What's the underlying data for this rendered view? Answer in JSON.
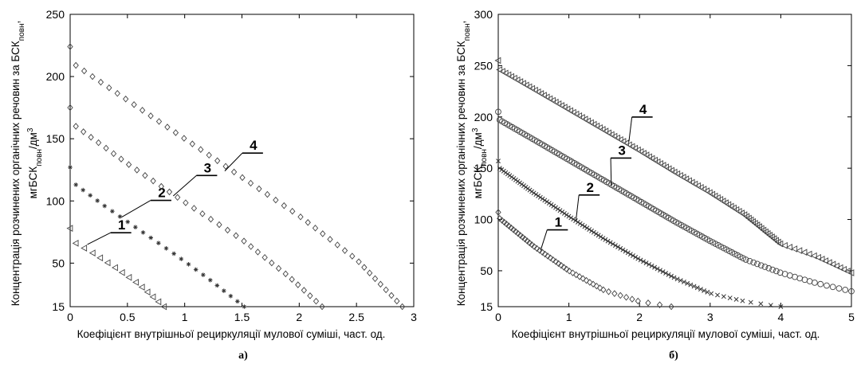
{
  "chart_data": [
    {
      "type": "scatter",
      "panel_label": "а)",
      "xlabel": "Коефіцієнт внутрішньої рециркуляції мулової суміші, част. од.",
      "ylabel_line1": "Концентрація розчинених органічних речовин за БСК",
      "ylabel_line1_sub": "повн",
      "ylabel_line1_tail": ",",
      "ylabel_line2": "мгБСК",
      "ylabel_line2_sub": "повн",
      "ylabel_line2_tail": "/дм",
      "ylabel_line2_sup": "3",
      "xlim": [
        0,
        3
      ],
      "ylim": [
        15,
        250
      ],
      "xticks": [
        0,
        0.5,
        1,
        1.5,
        2,
        2.5,
        3
      ],
      "xtick_labels": [
        "0",
        "0.5",
        "1",
        "1.5",
        "2",
        "2.5",
        "3"
      ],
      "yticks": [
        15,
        50,
        100,
        150,
        200,
        250
      ],
      "ytick_labels": [
        "15",
        "50",
        "100",
        "150",
        "200",
        "250"
      ],
      "series": [
        {
          "name": "1",
          "marker": "triangle-left",
          "start": [
            0,
            78
          ],
          "points": [
            [
              0.05,
              66
            ],
            [
              0.2,
              58
            ],
            [
              0.4,
              46
            ],
            [
              0.6,
              33
            ],
            [
              0.82,
              15
            ]
          ],
          "n": 14,
          "label_anchor": [
            0.15,
            65
          ],
          "label_pos": [
            0.45,
            77
          ]
        },
        {
          "name": "2",
          "marker": "star",
          "start": [
            0,
            127
          ],
          "points": [
            [
              0.05,
              113
            ],
            [
              0.3,
              96
            ],
            [
              0.6,
              77
            ],
            [
              0.9,
              58
            ],
            [
              1.2,
              38
            ],
            [
              1.52,
              15
            ]
          ],
          "n": 24,
          "label_anchor": [
            0.45,
            87
          ],
          "label_pos": [
            0.8,
            103
          ]
        },
        {
          "name": "3",
          "marker": "diamond",
          "start": [
            0,
            175
          ],
          "points": [
            [
              0.05,
              160
            ],
            [
              0.5,
              130
            ],
            [
              1.0,
              99
            ],
            [
              1.5,
              69
            ],
            [
              1.9,
              40
            ],
            [
              2.2,
              15
            ]
          ],
          "n": 34,
          "label_anchor": [
            0.9,
            104
          ],
          "label_pos": [
            1.2,
            123
          ]
        },
        {
          "name": "4",
          "marker": "diamond",
          "start": [
            0,
            224
          ],
          "points": [
            [
              0.05,
              209
            ],
            [
              0.5,
              181
            ],
            [
              1.0,
              150
            ],
            [
              1.5,
              119
            ],
            [
              2.0,
              88
            ],
            [
              2.5,
              53
            ],
            [
              2.9,
              15
            ]
          ],
          "n": 44,
          "label_anchor": [
            1.35,
            124
          ],
          "label_pos": [
            1.6,
            141
          ]
        }
      ]
    },
    {
      "type": "scatter",
      "panel_label": "б)",
      "xlabel": "Коефіцієнт внутрішньої рециркуляції мулової суміші, част. од.",
      "ylabel_line1": "Концентрація розчинених органічних речовин за БСК",
      "ylabel_line1_sub": "повн",
      "ylabel_line1_tail": ",",
      "ylabel_line2": "мгБСК",
      "ylabel_line2_sub": "повн",
      "ylabel_line2_tail": "/дм",
      "ylabel_line2_sup": "3",
      "xlim": [
        0,
        5
      ],
      "ylim": [
        15,
        300
      ],
      "xticks": [
        0,
        1,
        2,
        3,
        4,
        5
      ],
      "xtick_labels": [
        "0",
        "1",
        "2",
        "3",
        "4",
        "5"
      ],
      "yticks": [
        15,
        50,
        100,
        150,
        200,
        250,
        300
      ],
      "ytick_labels": [
        "15",
        "50",
        "100",
        "150",
        "200",
        "250",
        "300"
      ],
      "series": [
        {
          "name": "1",
          "marker": "diamond",
          "start": [
            0,
            107
          ],
          "points": [
            [
              0.02,
              101
            ],
            [
              0.5,
              74
            ],
            [
              1.0,
              50
            ],
            [
              1.5,
              31
            ],
            [
              2.0,
              20
            ],
            [
              2.45,
              15
            ]
          ],
          "n": 48,
          "label_anchor": [
            0.6,
            70
          ],
          "label_pos": [
            0.85,
            93
          ]
        },
        {
          "name": "2",
          "marker": "x",
          "start": [
            0,
            157
          ],
          "points": [
            [
              0.02,
              150
            ],
            [
              0.5,
              126
            ],
            [
              1.0,
              103
            ],
            [
              1.5,
              81
            ],
            [
              2.0,
              61
            ],
            [
              2.5,
              43
            ],
            [
              3.0,
              28
            ],
            [
              3.5,
              20
            ],
            [
              4.0,
              15
            ]
          ],
          "n": 96,
          "label_anchor": [
            1.1,
            99
          ],
          "label_pos": [
            1.3,
            127
          ]
        },
        {
          "name": "3",
          "marker": "circle",
          "start": [
            0,
            205
          ],
          "points": [
            [
              0.02,
              197
            ],
            [
              0.5,
              178
            ],
            [
              1.0,
              158
            ],
            [
              1.5,
              138
            ],
            [
              2.0,
              118
            ],
            [
              2.5,
              98
            ],
            [
              3.0,
              79
            ],
            [
              3.5,
              61
            ],
            [
              4.0,
              48
            ],
            [
              4.5,
              38
            ],
            [
              5.0,
              30
            ]
          ],
          "n": 120,
          "label_anchor": [
            1.6,
            133
          ],
          "label_pos": [
            1.75,
            163
          ]
        },
        {
          "name": "4",
          "marker": "triangle-left",
          "start": [
            0,
            255
          ],
          "points": [
            [
              0.02,
              246
            ],
            [
              0.5,
              227
            ],
            [
              1.0,
              207
            ],
            [
              1.5,
              187
            ],
            [
              2.0,
              167
            ],
            [
              2.5,
              146
            ],
            [
              3.0,
              126
            ],
            [
              3.5,
              104
            ],
            [
              4.0,
              76
            ],
            [
              4.5,
              64
            ],
            [
              5.0,
              48
            ]
          ],
          "n": 120,
          "label_anchor": [
            1.85,
            176
          ],
          "label_pos": [
            2.05,
            203
          ]
        }
      ]
    }
  ]
}
